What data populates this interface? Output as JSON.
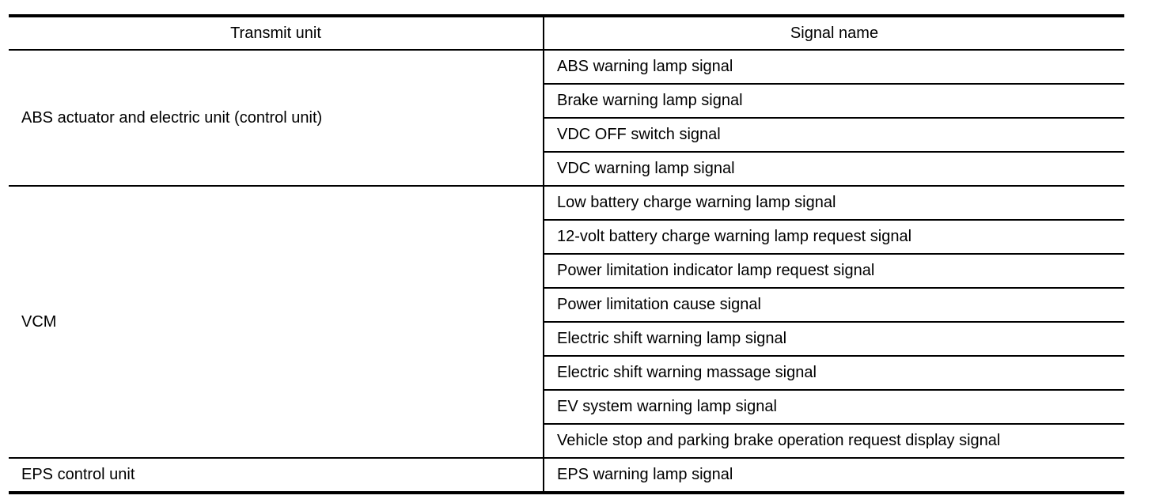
{
  "headers": {
    "transmit_unit": "Transmit unit",
    "signal_name": "Signal name"
  },
  "groups": [
    {
      "unit": "ABS actuator and electric unit (control unit)",
      "signals": [
        "ABS warning lamp signal",
        "Brake warning lamp signal",
        "VDC OFF switch signal",
        "VDC warning lamp signal"
      ]
    },
    {
      "unit": "VCM",
      "signals": [
        "Low battery charge warning lamp signal",
        "12-volt battery charge warning lamp request signal",
        "Power limitation indicator lamp request signal",
        "Power limitation cause signal",
        "Electric shift warning lamp signal",
        "Electric shift warning massage signal",
        "EV system warning lamp signal",
        "Vehicle stop and parking brake operation request display signal"
      ]
    },
    {
      "unit": "EPS control unit",
      "signals": [
        "EPS warning lamp signal"
      ]
    }
  ]
}
